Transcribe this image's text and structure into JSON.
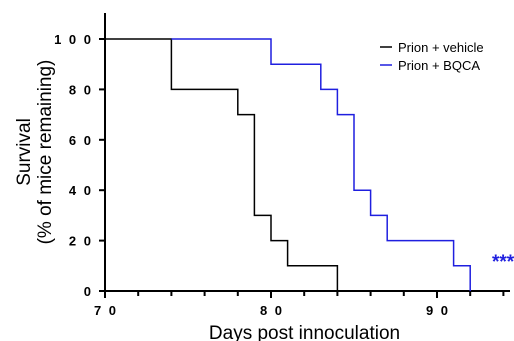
{
  "chart_data": {
    "type": "line",
    "step": true,
    "title": "",
    "xlabel": "Days post innoculation",
    "ylabel_line1": "Survival",
    "ylabel_line2": "(% of mice remaining)",
    "xlim": [
      70,
      94
    ],
    "ylim": [
      0,
      110
    ],
    "xticks": [
      70,
      80,
      90
    ],
    "xtick_labels": [
      "7 0",
      "8 0",
      "9 0"
    ],
    "yticks": [
      0,
      20,
      40,
      60,
      80,
      100
    ],
    "ytick_labels": [
      "0",
      "2 0",
      "4 0",
      "6 0",
      "8 0",
      "1 0 0"
    ],
    "legend_position": "top-right",
    "series": [
      {
        "name": "Prion + vehicle",
        "color": "#000000",
        "x": [
          70,
          74,
          74,
          78,
          78,
          79,
          79,
          80,
          80,
          81,
          81,
          84,
          84
        ],
        "y": [
          100,
          100,
          80,
          80,
          70,
          70,
          30,
          30,
          20,
          20,
          10,
          10,
          0
        ]
      },
      {
        "name": "Prion + BQCA",
        "color": "#1f1fdf",
        "x": [
          74,
          80,
          80,
          83,
          83,
          84,
          84,
          85,
          85,
          86,
          86,
          87,
          87,
          91,
          91,
          92,
          92
        ],
        "y": [
          100,
          100,
          90,
          90,
          80,
          80,
          70,
          70,
          40,
          40,
          30,
          30,
          20,
          20,
          10,
          10,
          0
        ]
      }
    ],
    "annotation": {
      "text": "***",
      "x": 93.5,
      "y": 10,
      "color": "#1f1fdf"
    }
  }
}
